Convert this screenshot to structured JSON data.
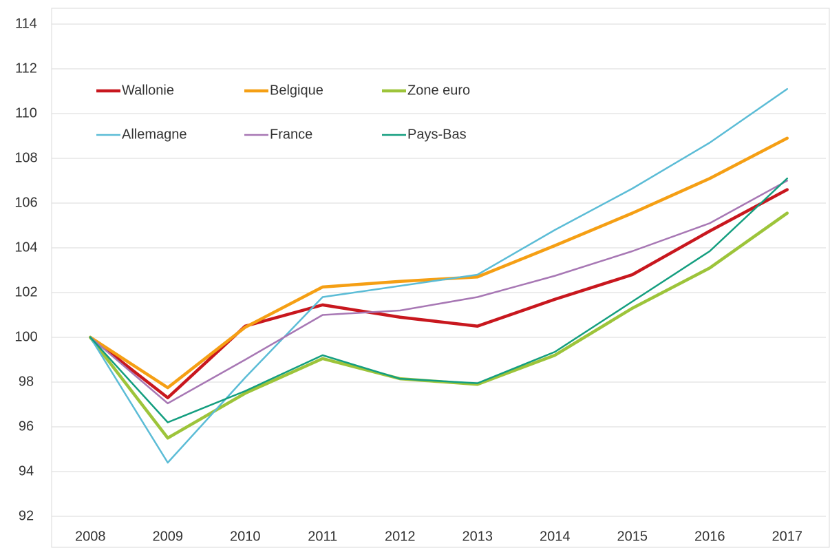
{
  "chart_data": {
    "type": "line",
    "categories": [
      "2008",
      "2009",
      "2010",
      "2011",
      "2012",
      "2013",
      "2014",
      "2015",
      "2016",
      "2017"
    ],
    "series": [
      {
        "name": "Wallonie",
        "color": "#c8171e",
        "values": [
          100,
          97.3,
          100.5,
          101.45,
          100.9,
          100.5,
          101.7,
          102.8,
          104.75,
          106.6
        ]
      },
      {
        "name": "Belgique",
        "color": "#f59f14",
        "values": [
          100,
          97.75,
          100.45,
          102.25,
          102.5,
          102.7,
          104.1,
          105.55,
          107.1,
          108.9
        ]
      },
      {
        "name": "Zone euro",
        "color": "#9dc43a",
        "values": [
          100,
          95.5,
          97.5,
          99.05,
          98.15,
          97.9,
          99.2,
          101.3,
          103.1,
          105.55
        ]
      },
      {
        "name": "Allemagne",
        "color": "#5bbcd6",
        "values": [
          100,
          94.4,
          98.2,
          101.8,
          102.3,
          102.8,
          104.8,
          106.65,
          108.7,
          111.1
        ]
      },
      {
        "name": "France",
        "color": "#a777b4",
        "values": [
          100,
          97.05,
          99.0,
          101.0,
          101.2,
          101.8,
          102.75,
          103.85,
          105.1,
          107.0
        ]
      },
      {
        "name": "Pays-Bas",
        "color": "#139e7f",
        "values": [
          100,
          96.2,
          97.6,
          99.2,
          98.15,
          97.95,
          99.35,
          101.6,
          103.85,
          107.1
        ]
      }
    ],
    "ylim": [
      92,
      114
    ],
    "yticks": [
      92,
      94,
      96,
      98,
      100,
      102,
      104,
      106,
      108,
      110,
      112,
      114
    ],
    "grid": true
  }
}
